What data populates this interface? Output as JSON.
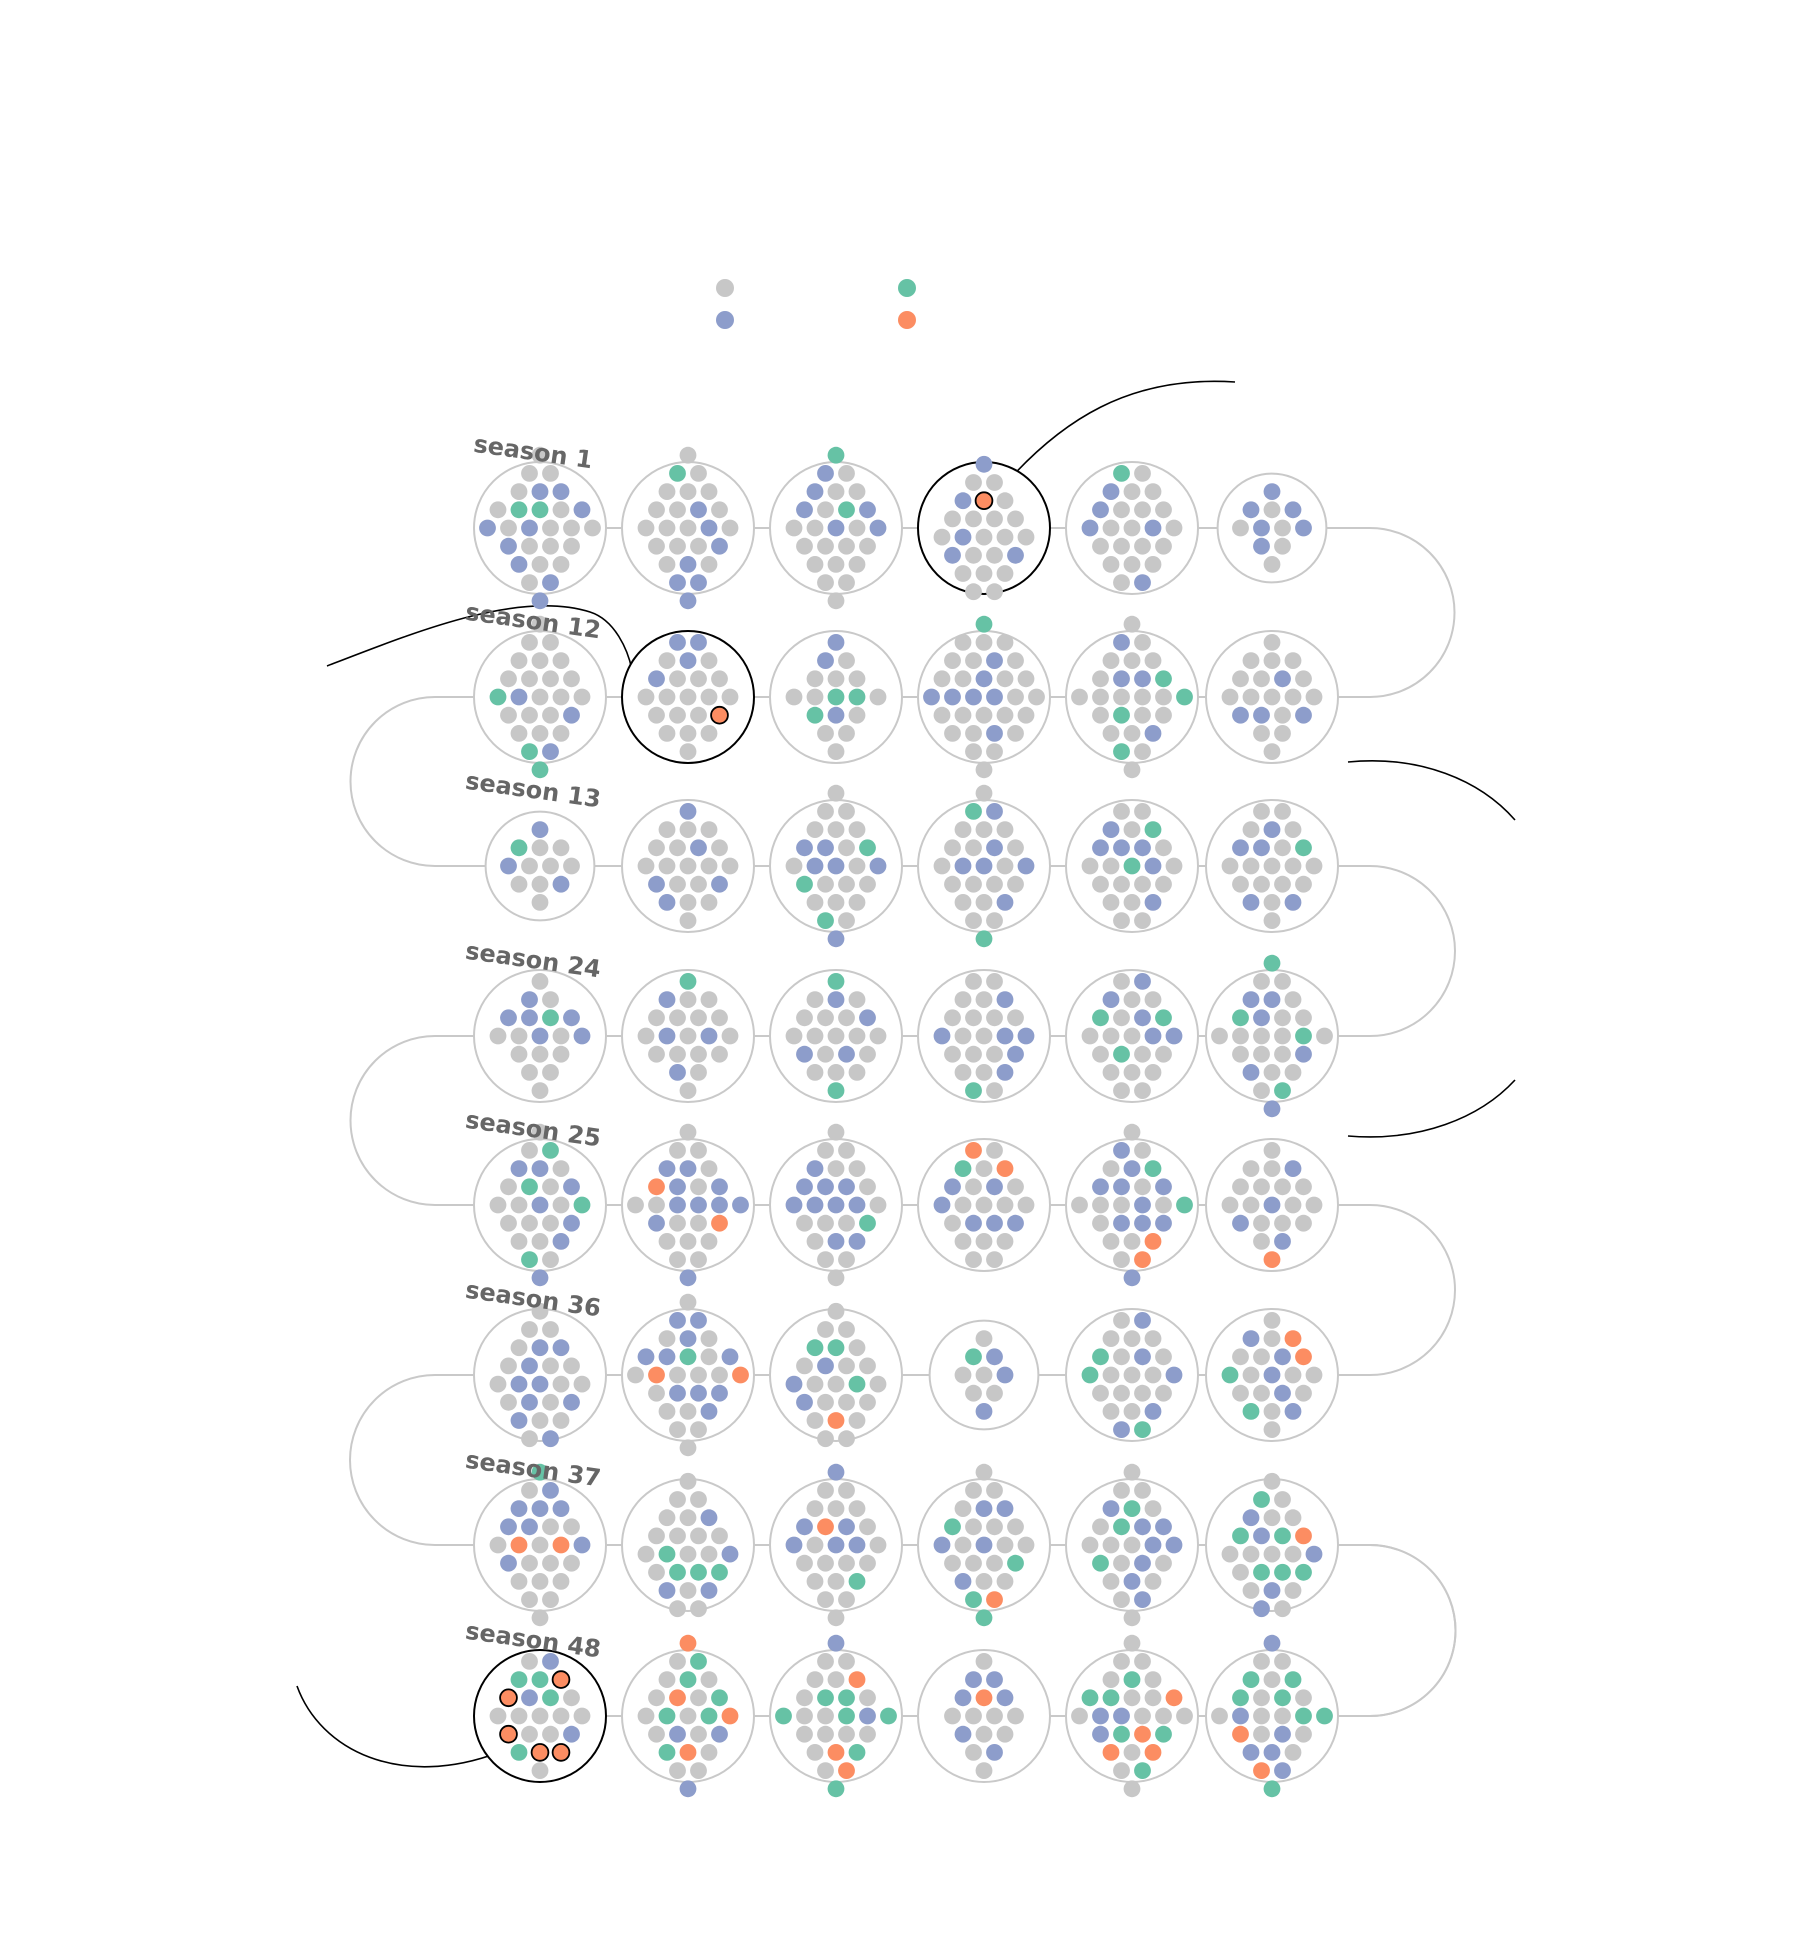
{
  "colors": {
    "background": "#ffffff",
    "gray": "#c7c7c7",
    "blue": "#8d9dcb",
    "green": "#66c2a5",
    "orange": "#fc8d62",
    "circle_outline": "#c9c9c9",
    "highlight_outline": "#000000",
    "connector": "#c9c9c9",
    "annotation_line": "#000000",
    "label": "#666666"
  },
  "legend": {
    "items": [
      {
        "color": "gray"
      },
      {
        "color": "blue"
      },
      {
        "color": "green"
      },
      {
        "color": "orange"
      }
    ]
  },
  "chart_data": {
    "type": "unit-dot-clusters",
    "description_counts_by_color_order": [
      "gray",
      "blue",
      "green",
      "orange"
    ],
    "rows": [
      {
        "label": "season 1",
        "episodes": [
          {
            "gray": 16,
            "blue": 9,
            "green": 2,
            "orange": 0
          },
          {
            "gray": 17,
            "blue": 7,
            "green": 1,
            "orange": 0
          },
          {
            "gray": 17,
            "blue": 6,
            "green": 2,
            "orange": 0
          },
          {
            "gray": 18,
            "blue": 5,
            "green": 0,
            "orange": 1,
            "highlight": true
          },
          {
            "gray": 17,
            "blue": 5,
            "green": 1,
            "orange": 0
          },
          {
            "gray": 5,
            "blue": 6,
            "green": 0,
            "orange": 0
          }
        ]
      },
      {
        "label": "season 12",
        "episodes": [
          {
            "gray": 19,
            "blue": 3,
            "green": 3,
            "orange": 0
          },
          {
            "gray": 17,
            "blue": 4,
            "green": 0,
            "orange": 1,
            "highlight": true
          },
          {
            "gray": 11,
            "blue": 3,
            "green": 3,
            "orange": 0
          },
          {
            "gray": 23,
            "blue": 7,
            "green": 1,
            "orange": 0
          },
          {
            "gray": 18,
            "blue": 4,
            "green": 4,
            "orange": 0
          },
          {
            "gray": 16,
            "blue": 4,
            "green": 0,
            "orange": 0
          }
        ]
      },
      {
        "label": "season 13",
        "episodes": [
          {
            "gray": 8,
            "blue": 3,
            "green": 1,
            "orange": 0
          },
          {
            "gray": 16,
            "blue": 5,
            "green": 0,
            "orange": 0
          },
          {
            "gray": 16,
            "blue": 6,
            "green": 3,
            "orange": 0
          },
          {
            "gray": 17,
            "blue": 6,
            "green": 2,
            "orange": 0
          },
          {
            "gray": 15,
            "blue": 6,
            "green": 2,
            "orange": 0
          },
          {
            "gray": 16,
            "blue": 5,
            "green": 1,
            "orange": 0
          }
        ]
      },
      {
        "label": "season 24",
        "episodes": [
          {
            "gray": 11,
            "blue": 6,
            "green": 1,
            "orange": 0
          },
          {
            "gray": 15,
            "blue": 4,
            "green": 1,
            "orange": 0
          },
          {
            "gray": 15,
            "blue": 4,
            "green": 2,
            "orange": 0
          },
          {
            "gray": 16,
            "blue": 6,
            "green": 1,
            "orange": 0
          },
          {
            "gray": 15,
            "blue": 5,
            "green": 3,
            "orange": 0
          },
          {
            "gray": 16,
            "blue": 6,
            "green": 4,
            "orange": 0
          }
        ]
      },
      {
        "label": "season 25",
        "episodes": [
          {
            "gray": 14,
            "blue": 7,
            "green": 4,
            "orange": 0
          },
          {
            "gray": 14,
            "blue": 10,
            "green": 0,
            "orange": 2
          },
          {
            "gray": 14,
            "blue": 10,
            "green": 1,
            "orange": 0
          },
          {
            "gray": 14,
            "blue": 6,
            "green": 1,
            "orange": 2
          },
          {
            "gray": 12,
            "blue": 10,
            "green": 2,
            "orange": 2
          },
          {
            "gray": 15,
            "blue": 4,
            "green": 0,
            "orange": 1
          }
        ]
      },
      {
        "label": "season 36",
        "episodes": [
          {
            "gray": 15,
            "blue": 9,
            "green": 0,
            "orange": 0
          },
          {
            "gray": 14,
            "blue": 10,
            "green": 1,
            "orange": 2
          },
          {
            "gray": 17,
            "blue": 3,
            "green": 3,
            "orange": 1
          },
          {
            "gray": 5,
            "blue": 3,
            "green": 1,
            "orange": 0
          },
          {
            "gray": 15,
            "blue": 5,
            "green": 3,
            "orange": 0
          },
          {
            "gray": 12,
            "blue": 5,
            "green": 2,
            "orange": 2
          }
        ]
      },
      {
        "label": "season 37",
        "episodes": [
          {
            "gray": 14,
            "blue": 8,
            "green": 1,
            "orange": 2
          },
          {
            "gray": 16,
            "blue": 4,
            "green": 4,
            "orange": 0
          },
          {
            "gray": 17,
            "blue": 6,
            "green": 1,
            "orange": 1
          },
          {
            "gray": 15,
            "blue": 5,
            "green": 4,
            "orange": 1
          },
          {
            "gray": 14,
            "blue": 8,
            "green": 3,
            "orange": 0
          },
          {
            "gray": 12,
            "blue": 5,
            "green": 6,
            "orange": 1
          }
        ]
      },
      {
        "label": "season 48",
        "episodes": [
          {
            "gray": 10,
            "blue": 3,
            "green": 4,
            "orange": 5,
            "highlight": true
          },
          {
            "gray": 12,
            "blue": 3,
            "green": 6,
            "orange": 4
          },
          {
            "gray": 14,
            "blue": 2,
            "green": 7,
            "orange": 3
          },
          {
            "gray": 9,
            "blue": 6,
            "green": 0,
            "orange": 1
          },
          {
            "gray": 14,
            "blue": 3,
            "green": 6,
            "orange": 4
          },
          {
            "gray": 11,
            "blue": 6,
            "green": 7,
            "orange": 2
          }
        ]
      }
    ]
  }
}
